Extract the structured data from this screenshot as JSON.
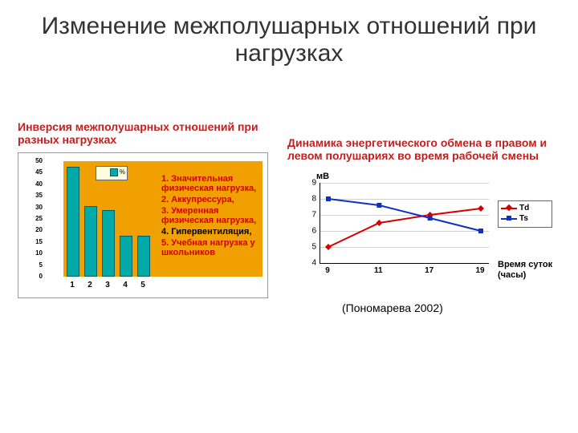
{
  "title": "Изменение межполушарных отношений при нагрузках",
  "title_color": "#333333",
  "title_fontsize": 30,
  "left": {
    "heading": "Инверсия межполушарных отношений при разных нагрузках",
    "heading_color": "#c02020",
    "chart": {
      "type": "bar",
      "categories": [
        "1",
        "2",
        "3",
        "4",
        "5"
      ],
      "values": [
        47,
        30,
        28,
        17,
        17
      ],
      "bar_color": "#00aaa8",
      "bar_border": "#006060",
      "ylim": [
        0,
        50
      ],
      "ytick_step": 5,
      "yticks": [
        "0",
        "5",
        "10",
        "15",
        "20",
        "25",
        "30",
        "35",
        "40",
        "45",
        "50"
      ],
      "plot_bg": "#f0a000",
      "legend_label": "%"
    },
    "items": [
      {
        "text": "1. Значительная физическая нагрузка,",
        "color": "red"
      },
      {
        "text": "2. Аккупрессура,",
        "color": "red"
      },
      {
        "text": "3. Умеренная физическая нагрузка,",
        "color": "red"
      },
      {
        "text": "4. Гипервентиляция,",
        "color": "black"
      },
      {
        "text": "5. Учебная нагрузка у школьников",
        "color": "red"
      }
    ]
  },
  "right": {
    "heading": "Динамика энергетического обмена в правом и левом полушариях во время рабочей смены",
    "heading_color": "#c02020",
    "chart": {
      "type": "line",
      "x_categories": [
        "9",
        "11",
        "17",
        "19"
      ],
      "ylabel": "мВ",
      "xlabel": "Время суток (часы)",
      "ylim": [
        4,
        9
      ],
      "yticks": [
        "4",
        "5",
        "6",
        "7",
        "8",
        "9"
      ],
      "grid_color": "#d0d0d0",
      "series": [
        {
          "name": "Td",
          "color": "#d40000",
          "marker": "diamond",
          "values": [
            5.0,
            6.5,
            7.0,
            7.4
          ]
        },
        {
          "name": "Ts",
          "color": "#1030c0",
          "marker": "square",
          "values": [
            8.0,
            7.6,
            6.8,
            6.0
          ]
        }
      ]
    }
  },
  "citation": "(Пономарева 2002)"
}
